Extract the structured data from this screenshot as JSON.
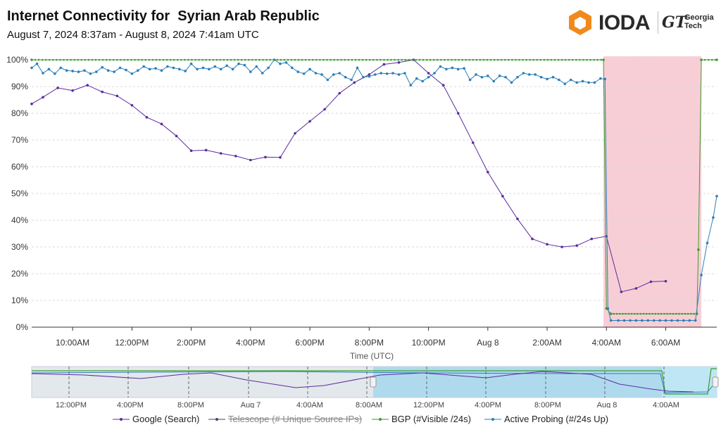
{
  "header": {
    "title": "Internet Connectivity for  Syrian Arab Republic",
    "subtitle": "August 7, 2024 8:37am - August 8, 2024 7:41am UTC"
  },
  "logo": {
    "brand": "IODA",
    "partner_mark": "GT",
    "partner_line1": "Georgia",
    "partner_line2": "Tech"
  },
  "colors": {
    "google": "#5b2c9e",
    "telescope": "#4a3f6b",
    "bgp": "#3a9b2e",
    "probing": "#2b7fb8",
    "outage_band": "#f7c5cf",
    "navigator_selected": "#a9d8ee",
    "navigator_unselected": "#e3e8ec"
  },
  "chart_data": {
    "type": "line",
    "title": "Internet Connectivity for  Syrian Arab Republic",
    "subtitle": "August 7, 2024 8:37am - August 8, 2024 7:41am UTC",
    "xlabel": "Time (UTC)",
    "ylabel": "",
    "x_range": [
      "2024-08-07 08:37",
      "2024-08-08 07:41"
    ],
    "ylim": [
      0,
      100
    ],
    "y_unit": "%",
    "y_ticks": [
      "0%",
      "10%",
      "20%",
      "30%",
      "40%",
      "50%",
      "60%",
      "70%",
      "80%",
      "90%",
      "100%"
    ],
    "x_tick_labels": [
      "10:00AM",
      "12:00PM",
      "2:00PM",
      "4:00PM",
      "6:00PM",
      "8:00PM",
      "10:00PM",
      "Aug 8",
      "2:00AM",
      "4:00AM",
      "6:00AM"
    ],
    "x_tick_hours": [
      10,
      12,
      14,
      16,
      18,
      20,
      22,
      24,
      26,
      28,
      30
    ],
    "grid": true,
    "legend_position": "bottom",
    "outage_band_hours": [
      27.9,
      31.2
    ],
    "series": [
      {
        "name": "Google (Search)",
        "key": "google",
        "x_hours": [
          8.62,
          9.0,
          9.5,
          10.0,
          10.5,
          11.0,
          11.5,
          12.0,
          12.5,
          13.0,
          13.5,
          14.0,
          14.5,
          15.0,
          15.5,
          16.0,
          16.5,
          17.0,
          17.5,
          18.0,
          18.5,
          19.0,
          19.5,
          20.0,
          20.5,
          21.0,
          21.5,
          22.0,
          22.5,
          23.0,
          23.5,
          24.0,
          24.5,
          25.0,
          25.5,
          26.0,
          26.5,
          27.0,
          27.5,
          28.0,
          28.5,
          29.0,
          29.5,
          30.0
        ],
        "values": [
          83.5,
          86.0,
          89.5,
          88.5,
          90.5,
          88.0,
          86.5,
          83.0,
          78.5,
          76.0,
          71.5,
          66.0,
          66.2,
          65.0,
          64.0,
          62.5,
          63.6,
          63.5,
          72.5,
          77.0,
          81.5,
          87.5,
          91.5,
          94.5,
          98.3,
          99.0,
          100.0,
          95.0,
          90.5,
          80.0,
          69.0,
          58.0,
          49.0,
          40.5,
          33.0,
          31.0,
          30.0,
          30.5,
          33.0,
          34.0,
          13.2,
          14.5,
          17.0,
          17.2
        ]
      },
      {
        "name": "Telescope (# Unique Source IPs)",
        "key": "telescope",
        "hidden": true,
        "x_hours": [],
        "values": []
      },
      {
        "name": "BGP (#Visible /24s)",
        "key": "bgp",
        "x_hours": [
          8.62,
          27.9,
          28.0,
          28.15,
          31.05,
          31.1,
          31.2,
          31.72
        ],
        "values": [
          100,
          100,
          7.0,
          5.0,
          5.0,
          29.0,
          100,
          100
        ]
      },
      {
        "name": "Active Probing (#/24s Up)",
        "key": "probing",
        "x_hours": [
          8.62,
          8.8,
          9.0,
          9.2,
          9.4,
          9.6,
          9.8,
          10.0,
          10.2,
          10.4,
          10.6,
          10.8,
          11.0,
          11.2,
          11.4,
          11.6,
          11.8,
          12.0,
          12.2,
          12.4,
          12.6,
          12.8,
          13.0,
          13.2,
          13.4,
          13.6,
          13.8,
          14.0,
          14.2,
          14.4,
          14.6,
          14.8,
          15.0,
          15.2,
          15.4,
          15.6,
          15.8,
          16.0,
          16.2,
          16.4,
          16.6,
          16.8,
          17.0,
          17.2,
          17.4,
          17.6,
          17.8,
          18.0,
          18.2,
          18.4,
          18.6,
          18.8,
          19.0,
          19.2,
          19.4,
          19.6,
          19.8,
          20.0,
          20.2,
          20.4,
          20.6,
          20.8,
          21.0,
          21.2,
          21.4,
          21.6,
          21.8,
          22.0,
          22.2,
          22.4,
          22.6,
          22.8,
          23.0,
          23.2,
          23.4,
          23.6,
          23.8,
          24.0,
          24.2,
          24.4,
          24.6,
          24.8,
          25.0,
          25.2,
          25.4,
          25.6,
          25.8,
          26.0,
          26.2,
          26.4,
          26.6,
          26.8,
          27.0,
          27.2,
          27.4,
          27.6,
          27.8,
          27.95,
          28.05,
          28.15,
          28.4,
          28.6,
          28.8,
          29.0,
          29.2,
          29.4,
          29.6,
          29.8,
          30.0,
          30.2,
          30.4,
          30.6,
          30.8,
          31.0,
          31.2,
          31.4,
          31.6,
          31.72
        ],
        "values": [
          97.0,
          98.5,
          95.0,
          96.5,
          94.8,
          97.0,
          96.0,
          95.8,
          95.5,
          96.0,
          94.8,
          95.5,
          97.2,
          96.0,
          95.5,
          97.0,
          96.2,
          94.8,
          96.0,
          97.5,
          96.5,
          96.8,
          96.0,
          97.5,
          97.0,
          96.5,
          95.8,
          98.5,
          96.5,
          97.0,
          96.5,
          97.5,
          96.5,
          97.8,
          96.5,
          98.5,
          98.0,
          95.5,
          97.5,
          95.0,
          97.0,
          100.0,
          98.5,
          99.0,
          97.0,
          95.5,
          94.8,
          96.5,
          95.0,
          94.5,
          92.5,
          94.5,
          95.0,
          93.5,
          92.5,
          97.0,
          93.5,
          93.8,
          94.5,
          95.0,
          94.8,
          95.0,
          94.5,
          95.0,
          90.5,
          93.0,
          92.0,
          93.5,
          95.0,
          97.5,
          96.5,
          97.0,
          96.5,
          96.8,
          92.5,
          94.5,
          93.5,
          94.0,
          92.0,
          94.0,
          93.5,
          91.5,
          93.5,
          95.0,
          94.5,
          94.5,
          93.5,
          92.8,
          93.5,
          92.5,
          91.0,
          92.5,
          91.5,
          92.0,
          91.5,
          91.5,
          93.0,
          92.8,
          7.0,
          2.5,
          2.5,
          2.5,
          2.5,
          2.5,
          2.5,
          2.5,
          2.5,
          2.5,
          2.5,
          2.5,
          2.5,
          2.5,
          2.5,
          2.5,
          19.5,
          31.5,
          41.0,
          49.0
        ]
      }
    ]
  },
  "navigator": {
    "labels": [
      "12:00PM",
      "4:00PM",
      "8:00PM",
      "Aug 7",
      "4:00AM",
      "8:00AM",
      "12:00PM",
      "4:00PM",
      "8:00PM",
      "Aug 8",
      "4:00AM"
    ]
  },
  "legend": [
    {
      "label": "Google (Search)",
      "key": "google",
      "enabled": true
    },
    {
      "label": "Telescope (# Unique Source IPs)",
      "key": "telescope",
      "enabled": false
    },
    {
      "label": "BGP (#Visible /24s)",
      "key": "bgp",
      "enabled": true
    },
    {
      "label": "Active Probing (#/24s Up)",
      "key": "probing",
      "enabled": true
    }
  ]
}
